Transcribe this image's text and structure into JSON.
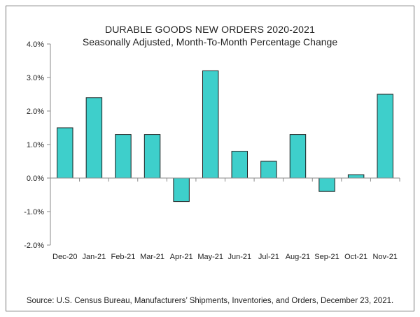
{
  "chart_data": {
    "type": "bar",
    "title": "DURABLE GOODS NEW ORDERS 2020-2021",
    "subtitle": "Seasonally Adjusted,  Month-To-Month Percentage Change",
    "categories": [
      "Dec-20",
      "Jan-21",
      "Feb-21",
      "Mar-21",
      "Apr-21",
      "May-21",
      "Jun-21",
      "Jul-21",
      "Aug-21",
      "Sep-21",
      "Oct-21",
      "Nov-21"
    ],
    "values": [
      1.5,
      2.4,
      1.3,
      1.3,
      -0.7,
      3.2,
      0.8,
      0.5,
      1.3,
      -0.4,
      0.1,
      2.5
    ],
    "ylim": [
      -2.0,
      4.0
    ],
    "yticks": [
      4.0,
      3.0,
      2.0,
      1.0,
      0.0,
      -1.0,
      -2.0
    ],
    "ytick_labels": [
      "4.0%",
      "3.0%",
      "2.0%",
      "1.0%",
      "0.0%",
      "-1.0%",
      "-2.0%"
    ],
    "xlabel": "",
    "ylabel": "",
    "grid": false,
    "legend": "none",
    "bar_color": "#3ecfcb",
    "bar_edge_color": "#1f1f1f"
  },
  "footer": {
    "source": "Source: U.S. Census Bureau, Manufacturers’ Shipments, Inventories, and Orders, December 23, 2021."
  }
}
